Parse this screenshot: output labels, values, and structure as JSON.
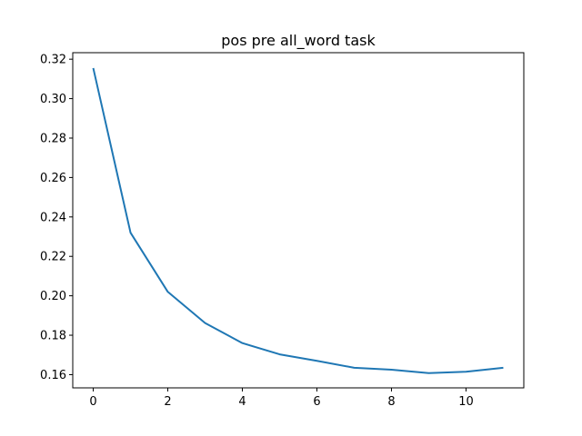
{
  "chart_data": {
    "type": "line",
    "title": "pos pre all_word task",
    "xlabel": "",
    "ylabel": "",
    "x": [
      0,
      1,
      2,
      3,
      4,
      5,
      6,
      7,
      8,
      9,
      10,
      11
    ],
    "series": [
      {
        "values": [
          0.3155,
          0.232,
          0.202,
          0.1862,
          0.176,
          0.1703,
          0.167,
          0.1635,
          0.1625,
          0.1608,
          0.1615,
          0.1635
        ],
        "color": "#1f77b4"
      }
    ],
    "xticks": [
      "0",
      "2",
      "4",
      "6",
      "8",
      "10"
    ],
    "yticks": [
      "0.16",
      "0.18",
      "0.20",
      "0.22",
      "0.24",
      "0.26",
      "0.28",
      "0.30",
      "0.32"
    ],
    "xlim": [
      -0.55,
      11.55
    ],
    "ylim": [
      0.1533,
      0.3233
    ],
    "grid": false
  }
}
